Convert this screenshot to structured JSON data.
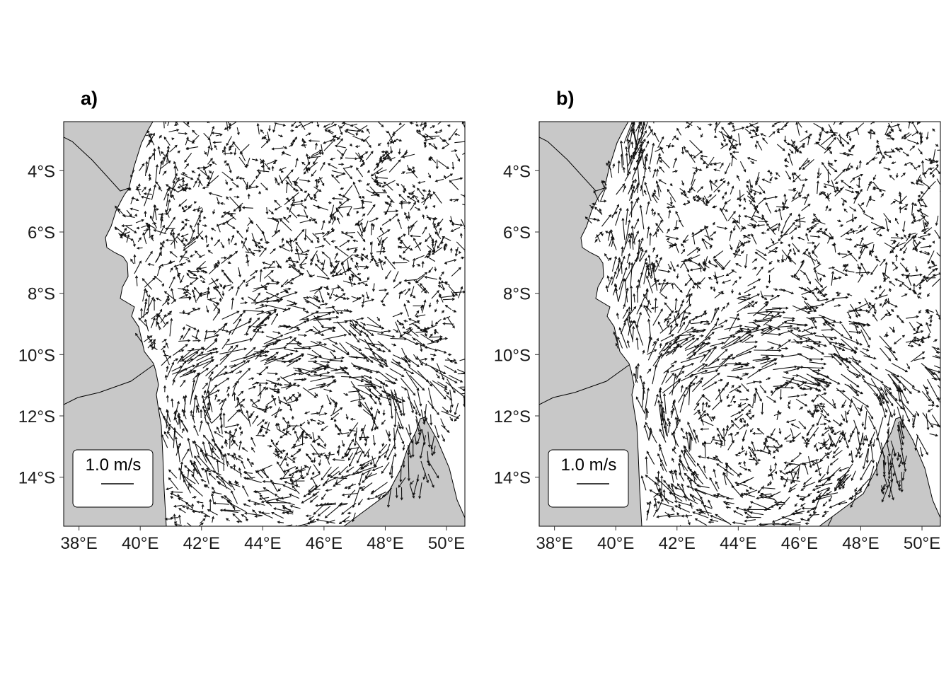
{
  "panels": [
    {
      "id": "a",
      "title": "a)",
      "scale_label": "1.0 m/s",
      "scale_speed_ms": 1.0
    },
    {
      "id": "b",
      "title": "b)",
      "scale_label": "1.0 m/s",
      "scale_speed_ms": 1.0
    }
  ],
  "axes": {
    "lon_range": [
      37.5,
      50.6
    ],
    "lat_range": [
      -15.6,
      -2.4
    ],
    "x_ticks": [
      {
        "value": 38,
        "label": "38°E"
      },
      {
        "value": 40,
        "label": "40°E"
      },
      {
        "value": 42,
        "label": "42°E"
      },
      {
        "value": 44,
        "label": "44°E"
      },
      {
        "value": 46,
        "label": "46°E"
      },
      {
        "value": 48,
        "label": "48°E"
      },
      {
        "value": 50,
        "label": "50°E"
      }
    ],
    "y_ticks": [
      {
        "value": -4,
        "label": "4°S"
      },
      {
        "value": -6,
        "label": "6°S"
      },
      {
        "value": -8,
        "label": "8°S"
      },
      {
        "value": -10,
        "label": "10°S"
      },
      {
        "value": -12,
        "label": "12°S"
      },
      {
        "value": -14,
        "label": "14°S"
      }
    ]
  },
  "colors": {
    "land": "#c8c8c8",
    "ocean": "#ffffff",
    "vectors": "#111111",
    "border": "#000000"
  }
}
